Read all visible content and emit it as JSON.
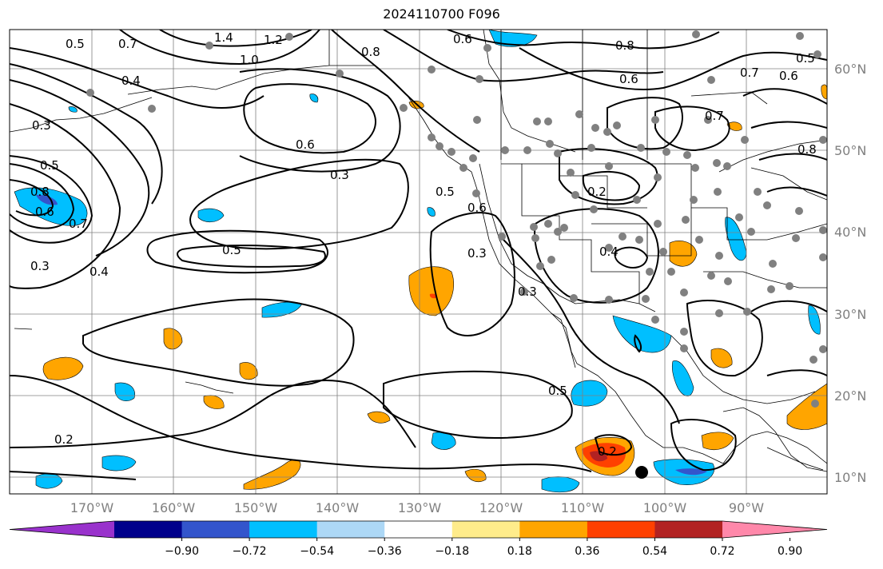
{
  "title": "2024110700 F096",
  "lat_labels": [
    "60°N",
    "50°N",
    "40°N",
    "30°N",
    "20°N",
    "10°N"
  ],
  "lon_labels": [
    "170°W",
    "160°W",
    "150°W",
    "140°W",
    "130°W",
    "120°W",
    "110°W",
    "100°W",
    "90°W"
  ],
  "contour_labels": [
    "0.5",
    "0.7",
    "0.4",
    "0.3",
    "1.4",
    "1.2",
    "1.0",
    "0.8",
    "0.6",
    "0.3",
    "0.5",
    "0.8",
    "0.6",
    "0.7",
    "0.4",
    "0.3",
    "0.5",
    "0.3",
    "0.2",
    "0.3",
    "0.2",
    "0.4",
    "0.6",
    "0.5",
    "0.8",
    "0.7",
    "0.6",
    "0.5",
    "0.7",
    "0.8",
    "0.6",
    "0.5",
    "0.2",
    "0.6"
  ],
  "colorbar": {
    "ticks": [
      "−0.90",
      "−0.72",
      "−0.54",
      "−0.36",
      "−0.18",
      "0.18",
      "0.36",
      "0.54",
      "0.72",
      "0.90"
    ],
    "colors": [
      "#9932cc",
      "#00008b",
      "#3355cc",
      "#00bfff",
      "#add8f6",
      "#ffffff",
      "#ffec8b",
      "#ffa500",
      "#ff4000",
      "#b22222",
      "#ff88aa"
    ]
  },
  "colors": {
    "land_line": "#000000",
    "grid": "#808080",
    "contour": "#000000",
    "station_dot": "#808080"
  }
}
